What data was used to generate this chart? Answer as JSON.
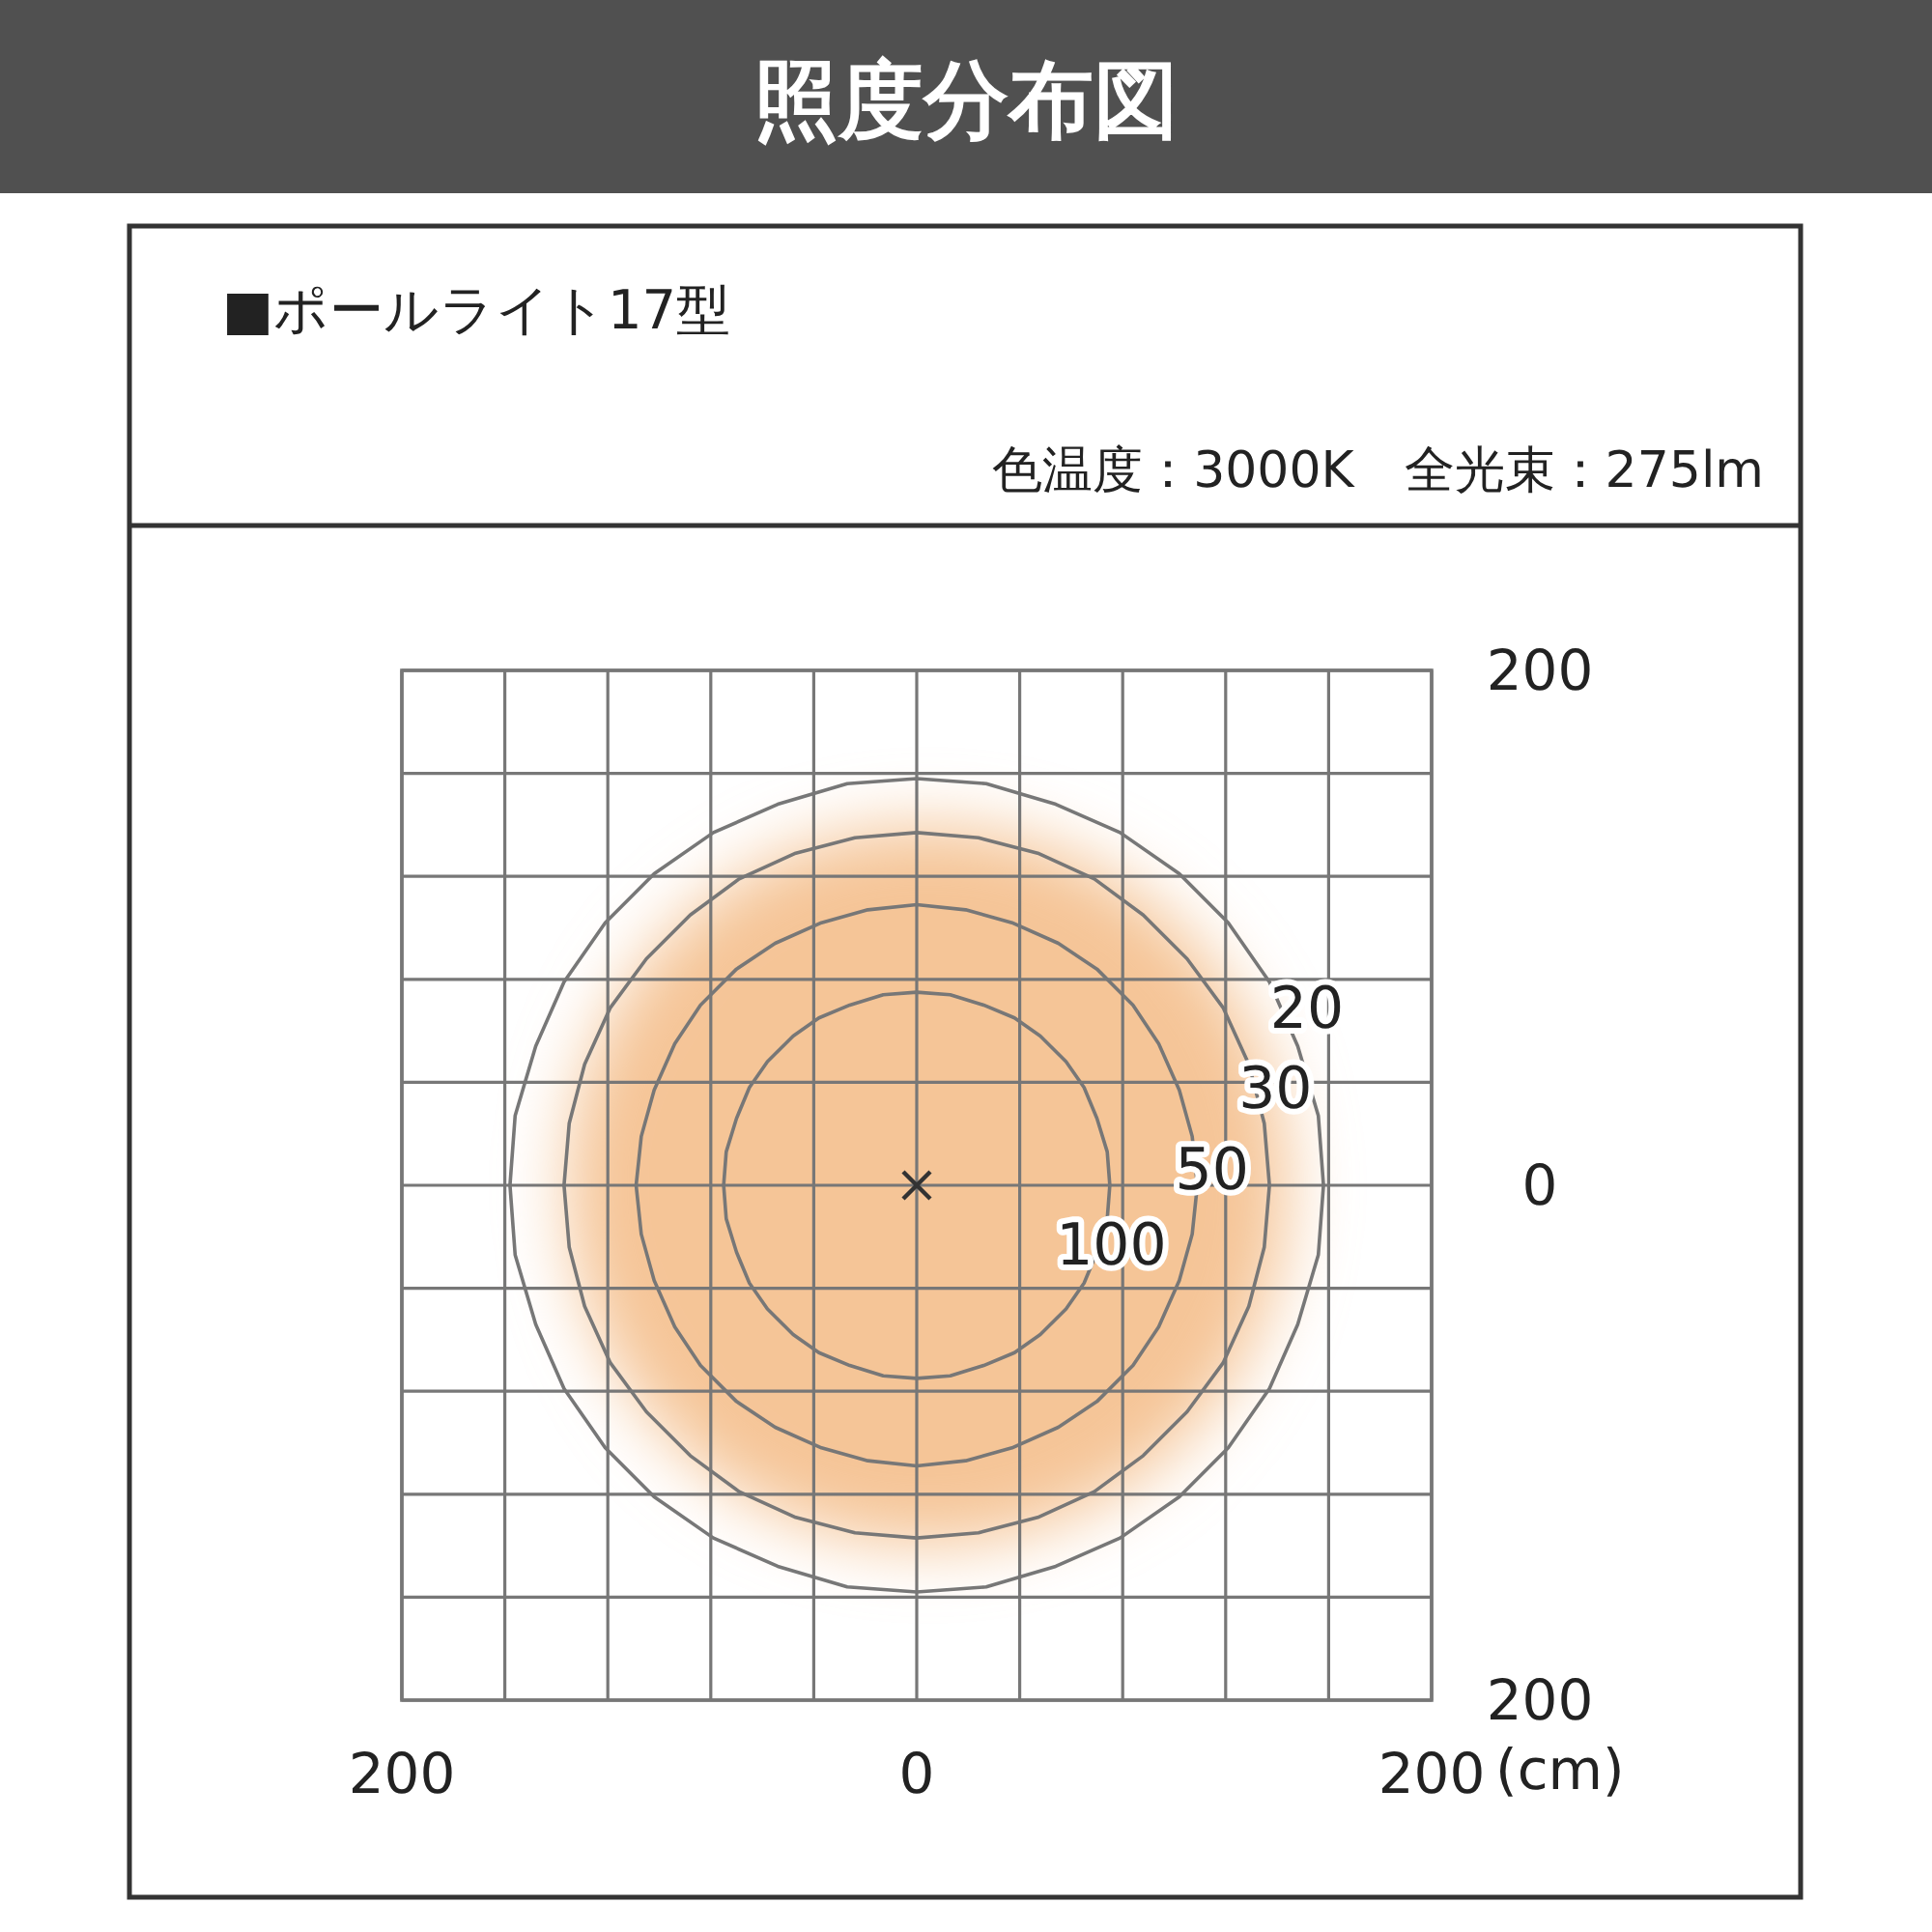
{
  "chart_data": {
    "type": "line",
    "title": "照度分布図",
    "subtitle": "■ポールライト17型",
    "annotations": [
      "色温度：3000K　全光束：275lm"
    ],
    "xlabel": "(cm)",
    "xlim": [
      -200,
      200
    ],
    "ylim": [
      -200,
      200
    ],
    "xticks": [
      {
        "value": -200,
        "label": "200"
      },
      {
        "value": -160,
        "label": null
      },
      {
        "value": -120,
        "label": null
      },
      {
        "value": -80,
        "label": null
      },
      {
        "value": -40,
        "label": null
      },
      0,
      {
        "value": 40,
        "label": null
      },
      {
        "value": 80,
        "label": null
      },
      {
        "value": 120,
        "label": null
      },
      {
        "value": 160,
        "label": null
      },
      200
    ],
    "yticks": [
      {
        "value": -200,
        "label": "200"
      },
      {
        "value": -160,
        "label": null
      },
      {
        "value": -120,
        "label": null
      },
      {
        "value": -80,
        "label": null
      },
      {
        "value": -40,
        "label": null
      },
      0,
      {
        "value": 40,
        "label": null
      },
      {
        "value": 80,
        "label": null
      },
      {
        "value": 120,
        "label": null
      },
      {
        "value": 160,
        "label": null
      },
      200
    ],
    "grid": true,
    "series": [
      {
        "name": "20",
        "color": "#777777",
        "x": [
          158,
          156,
          148,
          137,
          121,
          102,
          79,
          54,
          27,
          0,
          -27,
          -54,
          -79,
          -102,
          -121,
          -137,
          -148,
          -156,
          -158,
          -156,
          -148,
          -137,
          -121,
          -102,
          -79,
          -54,
          -27,
          0,
          27,
          54,
          79,
          102,
          121,
          137,
          148,
          156,
          158
        ],
        "values": [
          0,
          27,
          54,
          79,
          102,
          121,
          137,
          148,
          156,
          158,
          156,
          148,
          137,
          121,
          102,
          79,
          54,
          27,
          0,
          -27,
          -54,
          -79,
          -102,
          -121,
          -137,
          -148,
          -156,
          -158,
          -156,
          -148,
          -137,
          -121,
          -102,
          -79,
          -54,
          -27,
          0
        ]
      },
      {
        "name": "30",
        "color": "#777777",
        "x": [
          137,
          135,
          129,
          119,
          105,
          88,
          69,
          47,
          24,
          0,
          -24,
          -47,
          -69,
          -88,
          -105,
          -119,
          -129,
          -135,
          -137,
          -135,
          -129,
          -119,
          -105,
          -88,
          -69,
          -47,
          -24,
          0,
          24,
          47,
          69,
          88,
          105,
          119,
          129,
          135,
          137
        ],
        "values": [
          0,
          24,
          47,
          69,
          88,
          105,
          119,
          129,
          135,
          137,
          135,
          129,
          119,
          105,
          88,
          69,
          47,
          24,
          0,
          -24,
          -47,
          -69,
          -88,
          -105,
          -119,
          -129,
          -135,
          -137,
          -135,
          -129,
          -119,
          -105,
          -88,
          -69,
          -47,
          -24,
          0
        ]
      },
      {
        "name": "50",
        "color": "#777777",
        "x": [
          109,
          107,
          102,
          94,
          84,
          70,
          55,
          37,
          19,
          0,
          -19,
          -37,
          -55,
          -70,
          -84,
          -94,
          -102,
          -107,
          -109,
          -107,
          -102,
          -94,
          -84,
          -70,
          -55,
          -37,
          -19,
          0,
          19,
          37,
          55,
          70,
          84,
          94,
          102,
          107,
          109
        ],
        "values": [
          0,
          19,
          37,
          55,
          70,
          84,
          94,
          102,
          107,
          109,
          107,
          102,
          94,
          84,
          70,
          55,
          37,
          19,
          0,
          -19,
          -37,
          -55,
          -70,
          -84,
          -94,
          -102,
          -107,
          -109,
          -107,
          -102,
          -94,
          -84,
          -70,
          -55,
          -37,
          -19,
          0
        ]
      },
      {
        "name": "100",
        "color": "#777777",
        "x": [
          75,
          74,
          70,
          65,
          58,
          48,
          38,
          26,
          13,
          0,
          -13,
          -26,
          -38,
          -48,
          -58,
          -65,
          -70,
          -74,
          -75,
          -74,
          -70,
          -65,
          -58,
          -48,
          -38,
          -26,
          -13,
          0,
          13,
          26,
          38,
          48,
          58,
          65,
          70,
          74,
          75
        ],
        "values": [
          0,
          13,
          26,
          38,
          48,
          58,
          65,
          70,
          74,
          75,
          74,
          70,
          65,
          58,
          48,
          38,
          26,
          13,
          0,
          -13,
          -26,
          -38,
          -48,
          -58,
          -65,
          -70,
          -74,
          -75,
          -74,
          -70,
          -65,
          -58,
          -48,
          -38,
          -26,
          -13,
          0
        ]
      },
      {
        "type": "scatter",
        "marker": "cross",
        "color": "#333333",
        "x": [
          0
        ],
        "values": [
          0
        ]
      }
    ]
  }
}
